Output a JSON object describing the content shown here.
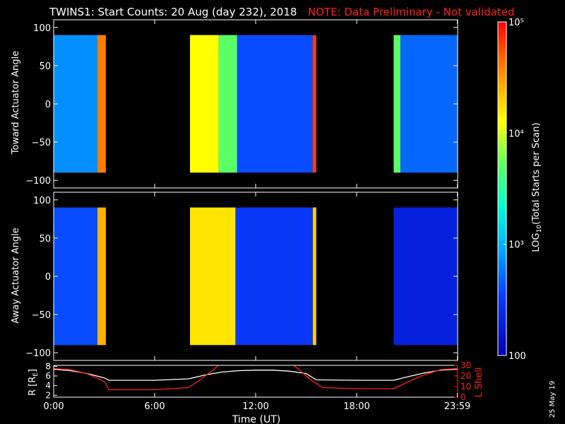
{
  "title": "TWINS1: Start Counts: 20 Aug (day 232), 2018",
  "note": "NOTE: Data Preliminary - Not validated",
  "date_stamp": "25 May 19",
  "colors": {
    "background": "#000000",
    "note": "#ff2020",
    "lshell": "#ff2020",
    "r": "#ffffff",
    "axes": "#ffffff"
  },
  "chart_data": [
    {
      "type": "heatmap",
      "ylabel": "Toward Actuator Angle",
      "ylim": [
        -110,
        110
      ],
      "yticks": [
        -100,
        -50,
        0,
        50,
        100
      ],
      "xlim": [
        0,
        24
      ],
      "data_range": {
        "angle": [
          -90,
          90
        ]
      },
      "segments": [
        {
          "t0": 0.0,
          "t1": 2.6,
          "log_counts": 2.85
        },
        {
          "t0": 2.6,
          "t1": 3.1,
          "log_counts": 4.6
        },
        {
          "t0": 8.1,
          "t1": 9.8,
          "log_counts": 4.1
        },
        {
          "t0": 9.8,
          "t1": 10.9,
          "log_counts": 3.7
        },
        {
          "t0": 10.9,
          "t1": 15.4,
          "log_counts": 2.6
        },
        {
          "t0": 15.4,
          "t1": 15.6,
          "log_counts": 4.8
        },
        {
          "t0": 20.2,
          "t1": 20.6,
          "log_counts": 3.7
        },
        {
          "t0": 20.6,
          "t1": 24.0,
          "log_counts": 2.7
        }
      ]
    },
    {
      "type": "heatmap",
      "ylabel": "Away Actuator Angle",
      "ylim": [
        -110,
        110
      ],
      "yticks": [
        -100,
        -50,
        0,
        50,
        100
      ],
      "xlim": [
        0,
        24
      ],
      "data_range": {
        "angle": [
          -90,
          90
        ]
      },
      "segments": [
        {
          "t0": 0.0,
          "t1": 2.6,
          "log_counts": 2.6
        },
        {
          "t0": 2.6,
          "t1": 3.1,
          "log_counts": 4.4
        },
        {
          "t0": 8.1,
          "t1": 10.8,
          "log_counts": 4.2
        },
        {
          "t0": 10.8,
          "t1": 15.4,
          "log_counts": 2.5
        },
        {
          "t0": 15.4,
          "t1": 15.6,
          "log_counts": 4.3
        },
        {
          "t0": 20.2,
          "t1": 24.0,
          "log_counts": 2.3
        }
      ]
    },
    {
      "type": "line",
      "xlabel": "Time (UT)",
      "xlim": [
        0,
        24
      ],
      "xtick_labels": [
        "0:00",
        "6:00",
        "12:00",
        "18:00",
        "23:59"
      ],
      "xtick_values": [
        0,
        6,
        12,
        18,
        23.98
      ],
      "ylabel": "R [RE]",
      "ylim": [
        1.6,
        8.2
      ],
      "yticks": [
        2,
        4,
        6,
        8
      ],
      "y2label": "L Shell",
      "y2lim": [
        0,
        30
      ],
      "y2ticks": [
        0,
        10,
        20,
        30
      ],
      "series": [
        {
          "axis": "left",
          "x": [
            0,
            1,
            2,
            3,
            3.3,
            6,
            8,
            9,
            10,
            11,
            12,
            13,
            14,
            15,
            15.6,
            18,
            20.2,
            21,
            22,
            23,
            24
          ],
          "y": [
            7.4,
            7.1,
            6.5,
            5.6,
            5.1,
            5.1,
            5.4,
            6.2,
            6.8,
            7.1,
            7.2,
            7.2,
            7.0,
            6.5,
            5.2,
            5.1,
            5.1,
            5.8,
            6.6,
            7.2,
            7.4
          ]
        },
        {
          "axis": "right",
          "x": [
            0,
            1,
            2,
            3,
            3.3,
            6,
            8,
            8.5,
            9,
            9.5,
            10,
            14,
            14.5,
            15,
            15.5,
            16,
            18,
            20.2,
            21,
            22,
            23,
            24
          ],
          "y": [
            27,
            26,
            22,
            15,
            7,
            7,
            9,
            14,
            20,
            26,
            33,
            33,
            27,
            20,
            14,
            9,
            8,
            8,
            14,
            21,
            26,
            27
          ]
        }
      ]
    },
    {
      "type": "colorbar",
      "label": "LOG10(Total Starts per Scan)",
      "label_text": "LOG",
      "label_sub": "10",
      "label_rest": "(Total Starts per Scan)",
      "range_log": [
        2,
        5
      ],
      "tick_labels": [
        "100",
        "10³",
        "10⁴",
        "10⁵"
      ],
      "tick_logs": [
        2,
        3,
        4,
        5
      ]
    }
  ]
}
